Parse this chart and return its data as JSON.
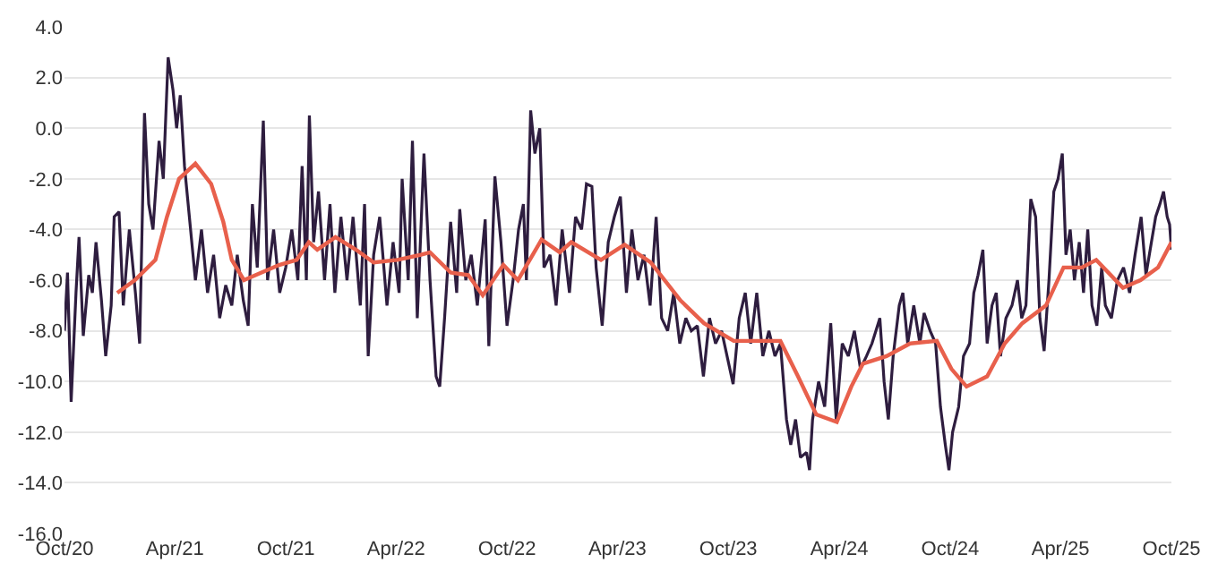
{
  "chart_data": {
    "type": "line",
    "series": [
      {
        "color": "#2e1d3f",
        "x": [
          "2020-10-01",
          "2020-10-06",
          "2020-10-12",
          "2020-10-20",
          "2020-10-25",
          "2020-11-01",
          "2020-11-10",
          "2020-11-16",
          "2020-11-22",
          "2020-12-01",
          "2020-12-08",
          "2020-12-17",
          "2020-12-22",
          "2020-12-30",
          "2021-01-06",
          "2021-01-16",
          "2021-01-26",
          "2021-02-02",
          "2021-02-10",
          "2021-02-17",
          "2021-02-24",
          "2021-03-06",
          "2021-03-13",
          "2021-03-21",
          "2021-03-29",
          "2021-04-04",
          "2021-04-10",
          "2021-04-17",
          "2021-04-25",
          "2021-05-05",
          "2021-05-15",
          "2021-05-25",
          "2021-06-04",
          "2021-06-14",
          "2021-06-24",
          "2021-07-04",
          "2021-07-13",
          "2021-07-23",
          "2021-07-31",
          "2021-08-07",
          "2021-08-15",
          "2021-08-25",
          "2021-09-01",
          "2021-09-11",
          "2021-09-21",
          "2021-10-01",
          "2021-10-11",
          "2021-10-21",
          "2021-10-28",
          "2021-11-04",
          "2021-11-09",
          "2021-11-16",
          "2021-11-24",
          "2021-12-04",
          "2021-12-13",
          "2021-12-21",
          "2021-12-31",
          "2022-01-10",
          "2022-01-20",
          "2022-02-01",
          "2022-02-08",
          "2022-02-14",
          "2022-02-23",
          "2022-03-05",
          "2022-03-17",
          "2022-03-27",
          "2022-04-06",
          "2022-04-11",
          "2022-04-21",
          "2022-04-28",
          "2022-05-06",
          "2022-05-17",
          "2022-05-27",
          "2022-06-06",
          "2022-06-12",
          "2022-06-20",
          "2022-06-30",
          "2022-07-10",
          "2022-07-15",
          "2022-07-25",
          "2022-08-03",
          "2022-08-13",
          "2022-08-26",
          "2022-09-01",
          "2022-09-11",
          "2022-09-21",
          "2022-10-01",
          "2022-10-11",
          "2022-10-20",
          "2022-10-28",
          "2022-11-02",
          "2022-11-09",
          "2022-11-16",
          "2022-11-24",
          "2022-12-01",
          "2022-12-11",
          "2022-12-21",
          "2022-12-31",
          "2023-01-12",
          "2023-01-22",
          "2023-02-01",
          "2023-02-09",
          "2023-02-18",
          "2023-02-25",
          "2023-03-07",
          "2023-03-17",
          "2023-03-27",
          "2023-04-06",
          "2023-04-16",
          "2023-04-25",
          "2023-05-05",
          "2023-05-15",
          "2023-05-25",
          "2023-06-04",
          "2023-06-13",
          "2023-06-23",
          "2023-07-03",
          "2023-07-13",
          "2023-07-23",
          "2023-08-01",
          "2023-08-11",
          "2023-08-21",
          "2023-08-31",
          "2023-09-10",
          "2023-09-20",
          "2023-09-29",
          "2023-10-09",
          "2023-10-19",
          "2023-10-29",
          "2023-11-07",
          "2023-11-17",
          "2023-11-27",
          "2023-12-07",
          "2023-12-17",
          "2023-12-26",
          "2024-01-05",
          "2024-01-12",
          "2024-01-20",
          "2024-01-28",
          "2024-02-07",
          "2024-02-12",
          "2024-02-17",
          "2024-02-27",
          "2024-03-08",
          "2024-03-18",
          "2024-03-27",
          "2024-04-06",
          "2024-04-16",
          "2024-04-26",
          "2024-05-06",
          "2024-05-16",
          "2024-05-25",
          "2024-06-07",
          "2024-06-14",
          "2024-06-21",
          "2024-06-29",
          "2024-07-09",
          "2024-07-15",
          "2024-07-23",
          "2024-08-02",
          "2024-08-12",
          "2024-08-19",
          "2024-08-29",
          "2024-09-07",
          "2024-09-15",
          "2024-09-23",
          "2024-09-29",
          "2024-10-05",
          "2024-10-15",
          "2024-10-23",
          "2024-11-02",
          "2024-11-09",
          "2024-11-16",
          "2024-11-24",
          "2024-12-01",
          "2024-12-09",
          "2024-12-16",
          "2024-12-23",
          "2025-01-01",
          "2025-01-11",
          "2025-01-20",
          "2025-01-27",
          "2025-02-03",
          "2025-02-11",
          "2025-02-19",
          "2025-02-26",
          "2025-03-05",
          "2025-03-13",
          "2025-03-21",
          "2025-03-28",
          "2025-04-04",
          "2025-04-10",
          "2025-04-17",
          "2025-04-24",
          "2025-05-02",
          "2025-05-09",
          "2025-05-16",
          "2025-05-23",
          "2025-05-31",
          "2025-06-08",
          "2025-06-14",
          "2025-06-24",
          "2025-07-04",
          "2025-07-14",
          "2025-07-24",
          "2025-08-02",
          "2025-08-12",
          "2025-08-20",
          "2025-08-29",
          "2025-09-05",
          "2025-09-12",
          "2025-09-18",
          "2025-09-24",
          "2025-09-28",
          "2025-10-01"
        ],
        "values": [
          -8.0,
          -5.7,
          -10.8,
          -6.5,
          -4.3,
          -8.2,
          -5.8,
          -6.5,
          -4.5,
          -6.8,
          -9.0,
          -7.0,
          -3.5,
          -3.3,
          -7.0,
          -4.0,
          -6.5,
          -8.5,
          0.6,
          -3.0,
          -4.0,
          -0.5,
          -2.0,
          2.8,
          1.5,
          0.0,
          1.3,
          -1.5,
          -3.5,
          -6.0,
          -4.0,
          -6.5,
          -5.0,
          -7.5,
          -6.2,
          -7.0,
          -5.0,
          -6.8,
          -7.8,
          -3.0,
          -5.5,
          0.3,
          -6.0,
          -4.0,
          -6.5,
          -5.5,
          -4.0,
          -6.0,
          -1.5,
          -6.0,
          0.5,
          -4.5,
          -2.5,
          -6.0,
          -3.0,
          -6.5,
          -3.5,
          -6.0,
          -3.5,
          -7.0,
          -3.0,
          -9.0,
          -5.0,
          -3.5,
          -7.0,
          -4.5,
          -6.5,
          -2.0,
          -6.0,
          -0.5,
          -7.5,
          -1.0,
          -6.0,
          -9.8,
          -10.2,
          -7.5,
          -3.7,
          -6.5,
          -3.2,
          -6.0,
          -5.0,
          -7.0,
          -3.6,
          -8.6,
          -1.9,
          -4.5,
          -7.8,
          -6.0,
          -4.0,
          -3.0,
          -6.0,
          0.7,
          -1.0,
          0.0,
          -5.5,
          -5.0,
          -7.0,
          -4.0,
          -6.5,
          -3.5,
          -4.0,
          -2.2,
          -2.3,
          -5.5,
          -7.8,
          -4.5,
          -3.5,
          -2.7,
          -6.5,
          -4.0,
          -6.0,
          -5.0,
          -7.0,
          -3.5,
          -7.5,
          -8.0,
          -6.5,
          -8.5,
          -7.5,
          -8.0,
          -7.8,
          -9.8,
          -7.5,
          -8.5,
          -8.0,
          -9.0,
          -10.1,
          -7.5,
          -6.5,
          -8.5,
          -6.5,
          -9.0,
          -8.0,
          -9.0,
          -8.5,
          -11.5,
          -12.5,
          -11.5,
          -13.0,
          -12.8,
          -13.5,
          -11.5,
          -10.0,
          -11.0,
          -7.7,
          -11.5,
          -8.5,
          -9.0,
          -8.0,
          -9.5,
          -9.0,
          -8.5,
          -7.5,
          -10.0,
          -11.5,
          -9.0,
          -7.0,
          -6.5,
          -8.5,
          -7.0,
          -8.5,
          -7.3,
          -8.0,
          -8.5,
          -11.0,
          -12.5,
          -13.5,
          -12.0,
          -11.0,
          -9.0,
          -8.5,
          -6.5,
          -5.8,
          -4.8,
          -8.5,
          -7.0,
          -6.5,
          -9.0,
          -7.5,
          -7.0,
          -6.0,
          -7.5,
          -7.0,
          -2.8,
          -3.5,
          -7.5,
          -8.8,
          -6.0,
          -2.5,
          -2.0,
          -1.0,
          -5.0,
          -4.0,
          -6.0,
          -4.5,
          -6.5,
          -4.0,
          -7.0,
          -7.8,
          -5.5,
          -7.0,
          -7.5,
          -6.0,
          -5.5,
          -6.5,
          -5.0,
          -3.5,
          -5.8,
          -4.5,
          -3.5,
          -3.0,
          -2.5,
          -3.5,
          -3.8,
          -4.8
        ]
      },
      {
        "color": "#e8604c",
        "x": [
          "2020-12-27",
          "2021-01-25",
          "2021-02-28",
          "2021-03-19",
          "2021-04-08",
          "2021-05-05",
          "2021-05-31",
          "2021-06-20",
          "2021-07-04",
          "2021-07-24",
          "2021-08-22",
          "2021-09-20",
          "2021-10-19",
          "2021-11-08",
          "2021-11-22",
          "2021-12-22",
          "2022-01-25",
          "2022-02-23",
          "2022-04-03",
          "2022-05-12",
          "2022-05-27",
          "2022-06-30",
          "2022-07-29",
          "2022-08-22",
          "2022-09-25",
          "2022-10-19",
          "2022-11-27",
          "2022-12-27",
          "2023-01-15",
          "2023-03-05",
          "2023-04-13",
          "2023-05-26",
          "2023-07-14",
          "2023-08-22",
          "2023-10-10",
          "2023-12-26",
          "2024-01-24",
          "2024-02-23",
          "2024-03-28",
          "2024-04-21",
          "2024-05-10",
          "2024-06-18",
          "2024-07-27",
          "2024-09-09",
          "2024-10-03",
          "2024-10-28",
          "2024-12-01",
          "2024-12-30",
          "2025-01-28",
          "2025-03-08",
          "2025-04-06",
          "2025-05-06",
          "2025-05-30",
          "2025-07-13",
          "2025-08-11",
          "2025-09-09",
          "2025-10-01"
        ],
        "values": [
          -6.5,
          -6.0,
          -5.2,
          -3.5,
          -2.0,
          -1.4,
          -2.2,
          -3.7,
          -5.2,
          -6.0,
          -5.7,
          -5.4,
          -5.2,
          -4.5,
          -4.8,
          -4.3,
          -4.8,
          -5.3,
          -5.2,
          -5.0,
          -4.9,
          -5.7,
          -5.8,
          -6.6,
          -5.4,
          -6.0,
          -4.4,
          -4.9,
          -4.5,
          -5.2,
          -4.6,
          -5.3,
          -6.8,
          -7.7,
          -8.4,
          -8.4,
          -9.8,
          -11.3,
          -11.6,
          -10.2,
          -9.3,
          -9.0,
          -8.5,
          -8.4,
          -9.5,
          -10.2,
          -9.8,
          -8.5,
          -7.7,
          -7.0,
          -5.5,
          -5.5,
          -5.2,
          -6.3,
          -6.0,
          -5.5,
          -4.5
        ]
      }
    ],
    "xlim": [
      "2020-10-01",
      "2025-10-01"
    ],
    "xticks": [
      {
        "value": "2020-10-01",
        "label": "Oct/20"
      },
      {
        "value": "2021-04-01",
        "label": "Apr/21"
      },
      {
        "value": "2021-10-01",
        "label": "Oct/21"
      },
      {
        "value": "2022-04-01",
        "label": "Apr/22"
      },
      {
        "value": "2022-10-01",
        "label": "Oct/22"
      },
      {
        "value": "2023-04-01",
        "label": "Apr/23"
      },
      {
        "value": "2023-10-01",
        "label": "Oct/23"
      },
      {
        "value": "2024-04-01",
        "label": "Apr/24"
      },
      {
        "value": "2024-10-01",
        "label": "Oct/24"
      },
      {
        "value": "2025-04-01",
        "label": "Apr/25"
      },
      {
        "value": "2025-10-01",
        "label": "Oct/25"
      }
    ],
    "ylim": [
      -16,
      4
    ],
    "yticks": [
      {
        "value": 4,
        "label": "4.0"
      },
      {
        "value": 2,
        "label": "2.0"
      },
      {
        "value": 0,
        "label": "0.0"
      },
      {
        "value": -2,
        "label": "-2.0"
      },
      {
        "value": -4,
        "label": "-4.0"
      },
      {
        "value": -6,
        "label": "-6.0"
      },
      {
        "value": -8,
        "label": "-8.0"
      },
      {
        "value": -10,
        "label": "-10.0"
      },
      {
        "value": -12,
        "label": "-12.0"
      },
      {
        "value": -14,
        "label": "-14.0"
      },
      {
        "value": -16,
        "label": "-16.0"
      }
    ],
    "grid": "y"
  }
}
